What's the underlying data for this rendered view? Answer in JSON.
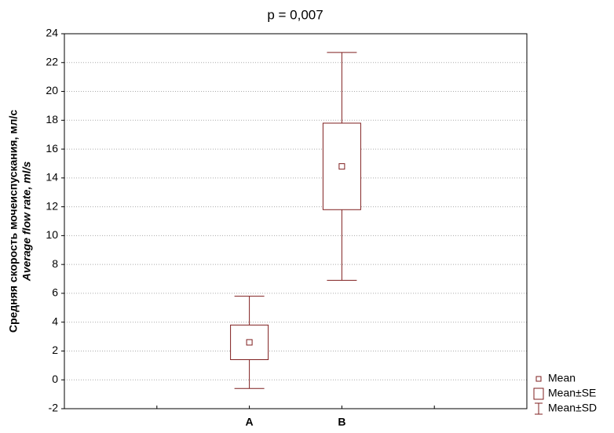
{
  "chart_data": {
    "type": "box",
    "title": "p = 0,007",
    "y_label": [
      "Средняя скорость мочеиспускания, мл/с",
      "Average flow rate, ml/s"
    ],
    "categories": [
      "A",
      "B"
    ],
    "mean": [
      2.6,
      14.8
    ],
    "se": [
      1.2,
      3.0
    ],
    "sd": [
      3.2,
      7.9
    ],
    "color": "#7f1f1f",
    "ylim": [
      -2,
      24
    ],
    "yticks": [
      -2,
      0,
      2,
      4,
      6,
      8,
      10,
      12,
      14,
      16,
      18,
      20,
      22,
      24
    ],
    "grid": true,
    "legend": [
      "Mean",
      "Mean±SE",
      "Mean±SD"
    ],
    "legend_position": "bottom-right"
  }
}
